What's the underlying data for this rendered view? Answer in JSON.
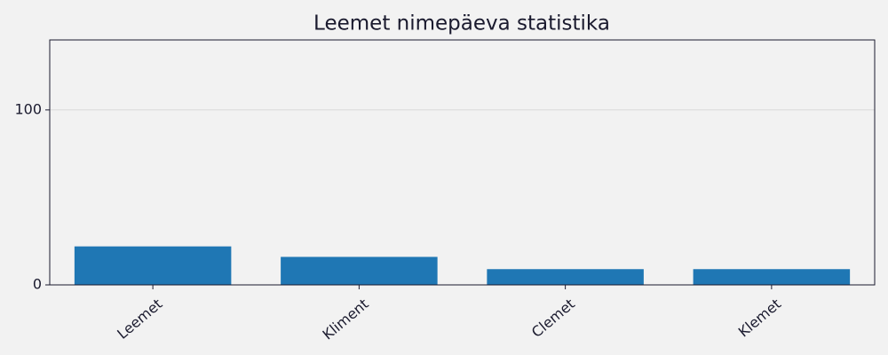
{
  "chart_data": {
    "type": "bar",
    "title": "Leemet nimepäeva statistika",
    "categories": [
      "Leemet",
      "Kliment",
      "Clemet",
      "Klemet"
    ],
    "values": [
      22,
      16,
      9,
      9
    ],
    "color": "#1f77b4",
    "ylim": [
      0,
      140
    ],
    "yticks": [
      0,
      100
    ],
    "grid": true
  }
}
